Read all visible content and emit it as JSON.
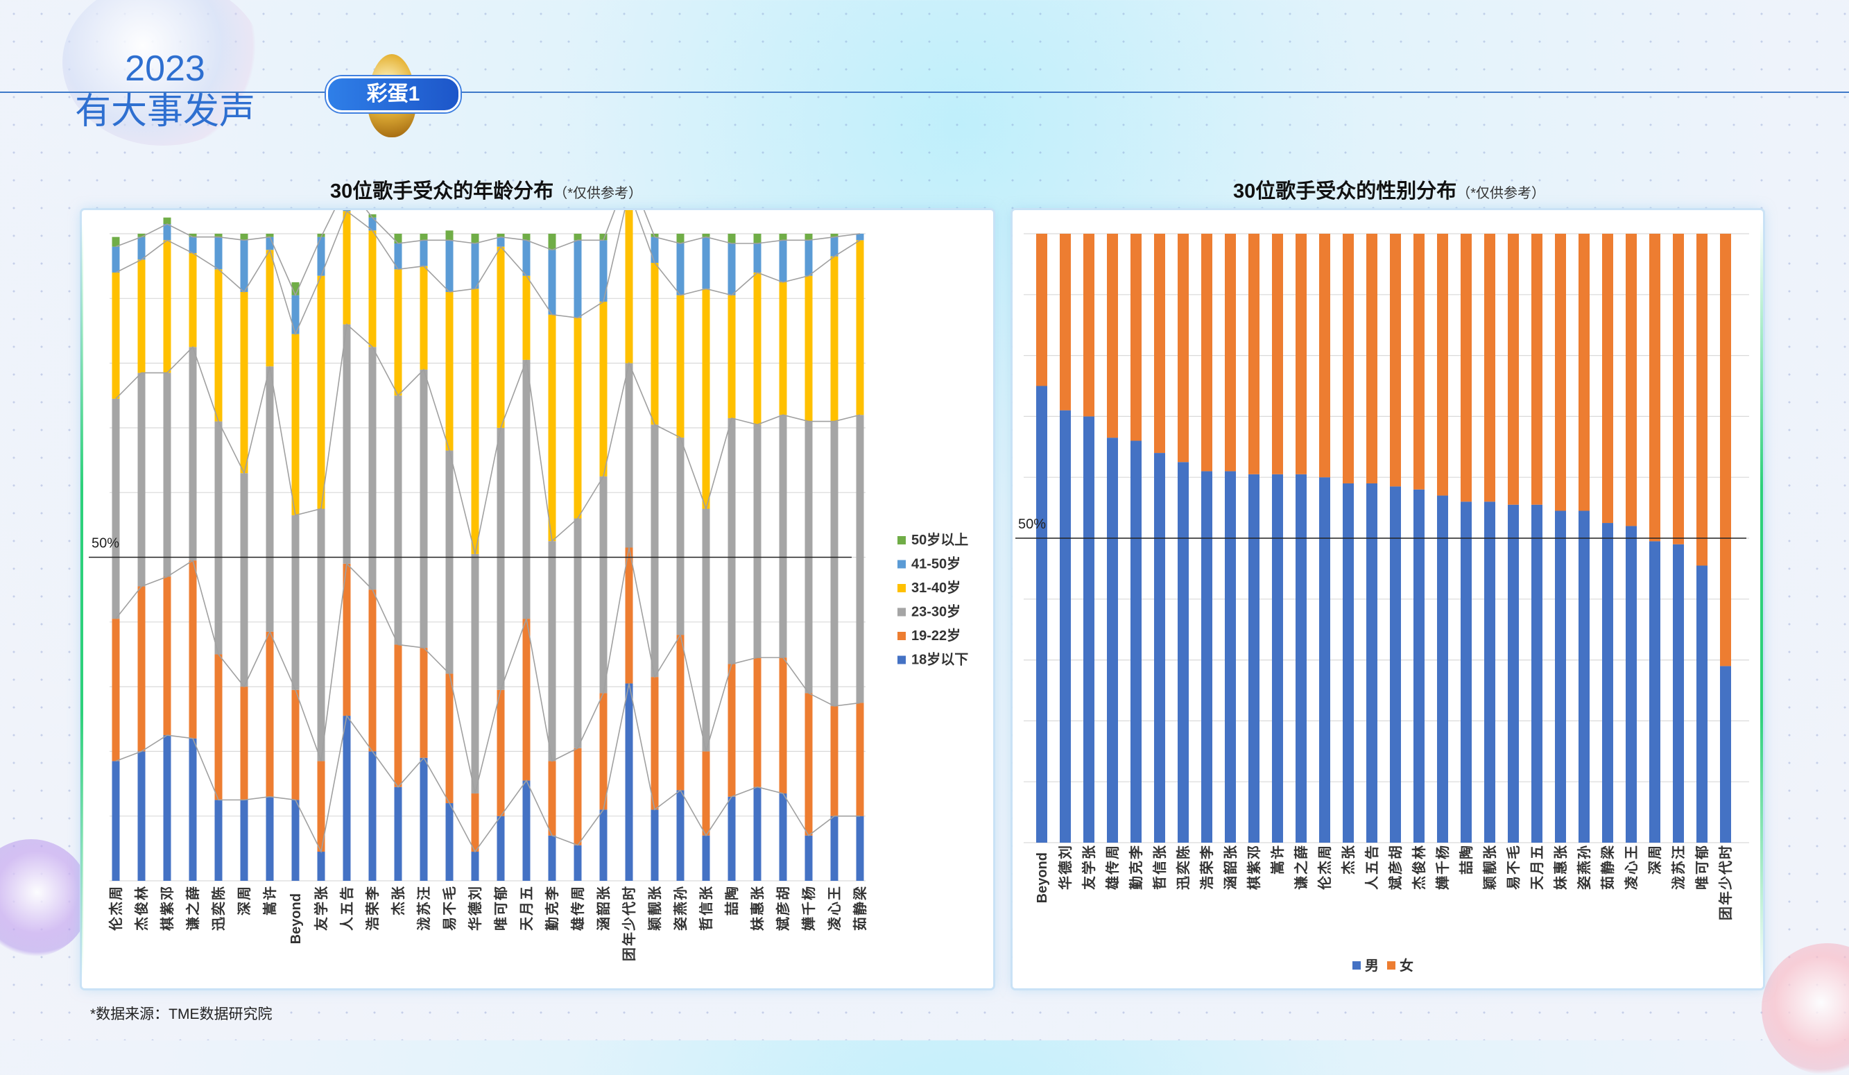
{
  "brand": {
    "year": "2023",
    "slogan": "有大事发声"
  },
  "badge": {
    "label": "彩蛋1"
  },
  "left_chart": {
    "title": "30位歌手受众的年龄分布",
    "note": "（*仅供参考）",
    "ref_label": "50%"
  },
  "right_chart": {
    "title": "30位歌手受众的性别分布",
    "note": "（*仅供参考）",
    "ref_label": "50%"
  },
  "source": "*数据来源：TME数据研究院",
  "chart_data": [
    {
      "type": "bar",
      "stacked": true,
      "normalized": true,
      "title": "30位歌手受众的年龄分布",
      "ylim": [
        0,
        100
      ],
      "reference_line": 50,
      "legend_position": "right",
      "grid": true,
      "categories": [
        "周杰伦",
        "林俊杰",
        "邓紫棋",
        "薛之谦",
        "陈奕迅",
        "周深",
        "许嵩",
        "Beyond",
        "张学友",
        "告五人",
        "李荣浩",
        "张杰",
        "汪苏泷",
        "毛不易",
        "刘德华",
        "郁可唯",
        "五月天",
        "李克勤",
        "周传雄",
        "张韶涵",
        "时代少年团",
        "张靓颖",
        "孙燕姿",
        "张信哲",
        "陶喆",
        "张惠妹",
        "胡彦斌",
        "杨千嬅",
        "王心凌",
        "梁静茹"
      ],
      "colors": {
        "18岁以下": "#4472c4",
        "19-22岁": "#ed7d31",
        "23-30岁": "#a5a5a5",
        "31-40岁": "#ffc000",
        "41-50岁": "#5b9bd5",
        "50岁以上": "#70ad47"
      },
      "series": [
        {
          "name": "18岁以下",
          "values": [
            18.5,
            20,
            22.5,
            22,
            12.5,
            12.5,
            13,
            12.5,
            4.5,
            25.5,
            20,
            14.5,
            19,
            12,
            4.5,
            10,
            15.5,
            7,
            5.5,
            11,
            30.5,
            11,
            14,
            7,
            13,
            14.5,
            13.5,
            7,
            10,
            10
          ]
        },
        {
          "name": "19-22岁",
          "values": [
            22,
            25.5,
            24.5,
            27.5,
            22.5,
            17.5,
            25.5,
            17,
            14,
            23.5,
            25,
            22,
            17,
            20,
            9,
            19.5,
            25,
            11.5,
            15,
            18,
            21,
            20.5,
            24,
            13,
            20.5,
            20,
            21,
            22,
            17,
            17.5
          ]
        },
        {
          "name": "23-30岁",
          "values": [
            34,
            33,
            31.5,
            33,
            36,
            33,
            41,
            27,
            39,
            37,
            37.5,
            38.5,
            43,
            34.5,
            37,
            40.5,
            40,
            34,
            35.5,
            33.5,
            28.5,
            39,
            30.5,
            37.5,
            38,
            36,
            37.5,
            42,
            44,
            44.5
          ]
        },
        {
          "name": "31-40岁",
          "values": [
            19.5,
            17.5,
            20.5,
            14.5,
            23.5,
            28,
            18,
            28,
            36,
            17.5,
            18,
            19.5,
            16,
            24.5,
            41,
            28,
            13,
            35,
            31,
            27,
            26.5,
            25,
            22,
            34,
            19,
            23.5,
            20.5,
            22.5,
            25.5,
            27
          ]
        },
        {
          "name": "41-50岁",
          "values": [
            4,
            3.5,
            2.5,
            2.5,
            5,
            8,
            2,
            6,
            6,
            4,
            2,
            4,
            4,
            8,
            7,
            1.5,
            5.5,
            10,
            12,
            9.5,
            3,
            4,
            8,
            8,
            8,
            4.5,
            6.5,
            5.5,
            3,
            1
          ]
        },
        {
          "name": "50岁以上",
          "values": [
            1.5,
            0.5,
            1,
            0.5,
            0.5,
            1,
            0.5,
            2,
            0.5,
            2.5,
            0.5,
            1.5,
            1,
            1.5,
            1.5,
            0.5,
            1,
            2.5,
            1,
            1,
            0.5,
            0.5,
            1.5,
            0.5,
            1.5,
            1.5,
            1,
            1,
            0.5,
            0
          ]
        }
      ]
    },
    {
      "type": "bar",
      "stacked": true,
      "normalized": true,
      "title": "30位歌手受众的性别分布",
      "ylim": [
        0,
        100
      ],
      "reference_line": 50,
      "legend_position": "bottom",
      "grid": true,
      "categories": [
        "Beyond",
        "刘德华",
        "张学友",
        "周传雄",
        "李克勤",
        "张信哲",
        "陈奕迅",
        "李荣浩",
        "张韶涵",
        "邓紫棋",
        "许嵩",
        "薛之谦",
        "周杰伦",
        "张杰",
        "告五人",
        "胡彦斌",
        "林俊杰",
        "杨千嬅",
        "陶喆",
        "张靓颖",
        "毛不易",
        "五月天",
        "张惠妹",
        "孙燕姿",
        "梁静茹",
        "王心凌",
        "周深",
        "汪苏泷",
        "郁可唯",
        "时代少年团"
      ],
      "colors": {
        "男": "#4472c4",
        "女": "#ed7d31"
      },
      "series": [
        {
          "name": "男",
          "values": [
            75,
            71,
            70,
            66.5,
            66,
            64,
            62.5,
            61,
            61,
            60.5,
            60.5,
            60.5,
            60,
            59,
            59,
            58.5,
            58,
            57,
            56,
            56,
            55.5,
            55.5,
            54.5,
            54.5,
            52.5,
            52,
            49.5,
            49,
            45.5,
            29
          ]
        },
        {
          "name": "女",
          "values": [
            25,
            29,
            30,
            33.5,
            34,
            36,
            37.5,
            39,
            39,
            39.5,
            39.5,
            39.5,
            40,
            41,
            41,
            41.5,
            42,
            43,
            44,
            44,
            44.5,
            44.5,
            45.5,
            45.5,
            47.5,
            48,
            50.5,
            51,
            54.5,
            71
          ]
        }
      ]
    }
  ]
}
